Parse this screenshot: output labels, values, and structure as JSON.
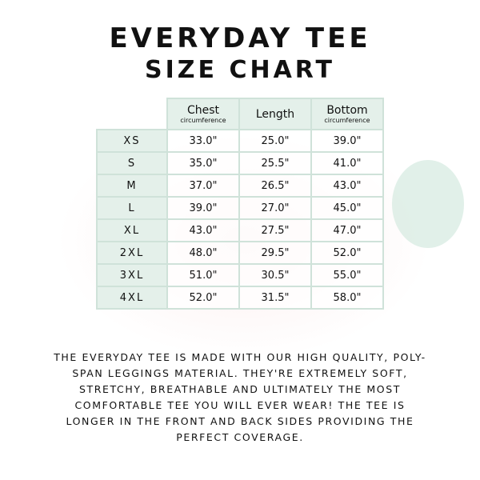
{
  "title": "EVERYDAY TEE",
  "subtitle": "SIZE CHART",
  "table": {
    "headers": [
      {
        "main": "Chest",
        "sub": "circumference"
      },
      {
        "main": "Length",
        "sub": ""
      },
      {
        "main": "Bottom",
        "sub": "circumference"
      }
    ],
    "rows": [
      {
        "size": "XS",
        "values": [
          "33.0\"",
          "25.0\"",
          "39.0\""
        ]
      },
      {
        "size": "S",
        "values": [
          "35.0\"",
          "25.5\"",
          "41.0\""
        ]
      },
      {
        "size": "M",
        "values": [
          "37.0\"",
          "26.5\"",
          "43.0\""
        ]
      },
      {
        "size": "L",
        "values": [
          "39.0\"",
          "27.0\"",
          "45.0\""
        ]
      },
      {
        "size": "XL",
        "values": [
          "43.0\"",
          "27.5\"",
          "47.0\""
        ]
      },
      {
        "size": "2XL",
        "values": [
          "48.0\"",
          "29.5\"",
          "52.0\""
        ]
      },
      {
        "size": "3XL",
        "values": [
          "51.0\"",
          "30.5\"",
          "55.0\""
        ]
      },
      {
        "size": "4XL",
        "values": [
          "52.0\"",
          "31.5\"",
          "58.0\""
        ]
      }
    ]
  },
  "description": "THE EVERYDAY TEE IS MADE WITH OUR HIGH QUALITY, POLY-SPAN LEGGINGS MATERIAL. THEY'RE EXTREMELY SOFT, STRETCHY, BREATHABLE AND ULTIMATELY THE MOST COMFORTABLE TEE YOU WILL EVER WEAR! THE TEE IS LONGER IN THE FRONT AND BACK SIDES PROVIDING THE PERFECT COVERAGE.",
  "colors": {
    "header_bg": "#e4f0ea",
    "border": "#cfe2d9"
  }
}
